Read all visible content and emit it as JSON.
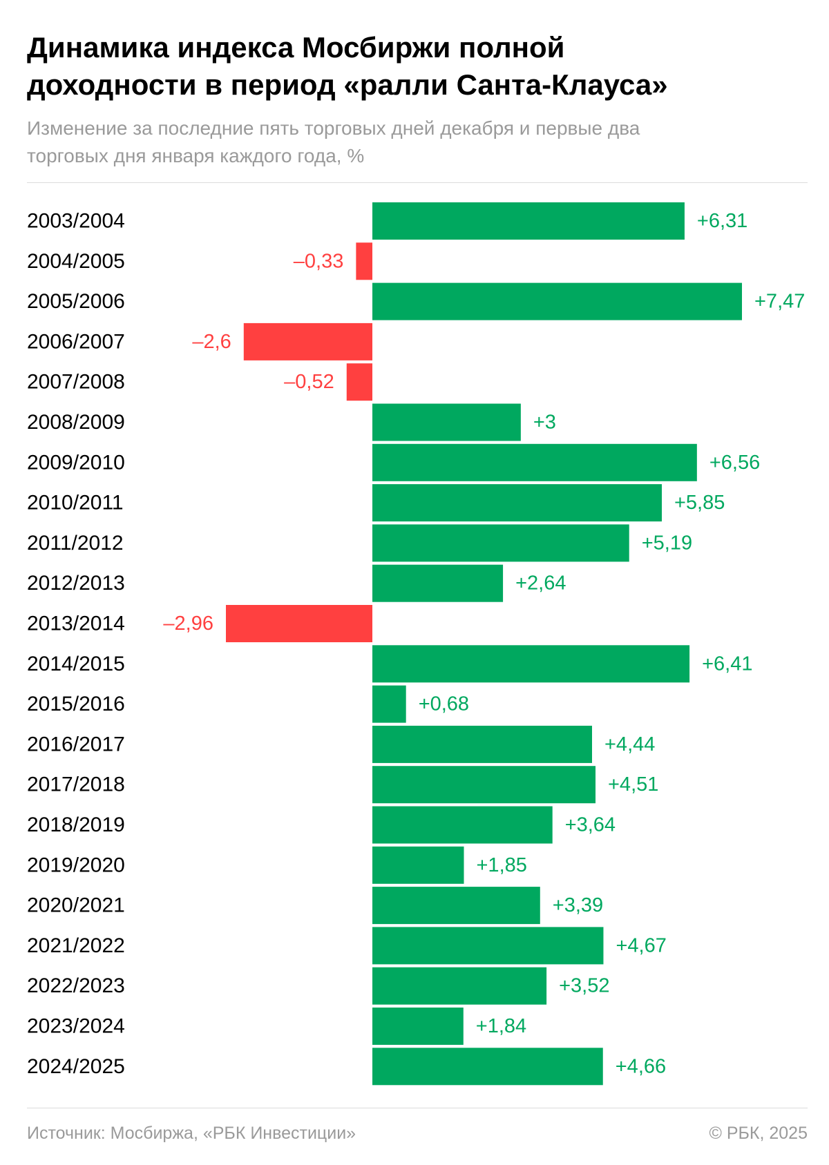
{
  "header": {
    "title_line1": "Динамика индекса Мосбиржи полной",
    "title_line2": "доходности в период «ралли Санта-Клауса»",
    "subtitle_line1": "Изменение за последние пять торговых дней декабря и первые два",
    "subtitle_line2": "торговых дня января каждого года, %"
  },
  "footer": {
    "source": "Источник: Мосбиржа, «РБК Инвестиции»",
    "copyright": "© РБК, 2025"
  },
  "colors": {
    "positive": "#00a85f",
    "negative": "#ff4040",
    "text": "#000000",
    "muted": "#9a9a9a"
  },
  "chart_data": {
    "type": "bar",
    "orientation": "horizontal",
    "title": "Динамика индекса Мосбиржи полной доходности в период «ралли Санта-Клауса»",
    "subtitle": "Изменение за последние пять торговых дней декабря и первые два торговых дня января каждого года, %",
    "categories": [
      "2003/2004",
      "2004/2005",
      "2005/2006",
      "2006/2007",
      "2007/2008",
      "2008/2009",
      "2009/2010",
      "2010/2011",
      "2011/2012",
      "2012/2013",
      "2013/2014",
      "2014/2015",
      "2015/2016",
      "2016/2017",
      "2017/2018",
      "2018/2019",
      "2019/2020",
      "2020/2021",
      "2021/2022",
      "2022/2023",
      "2023/2024",
      "2024/2025"
    ],
    "values": [
      6.31,
      -0.33,
      7.47,
      -2.6,
      -0.52,
      3,
      6.56,
      5.85,
      5.19,
      2.64,
      -2.96,
      6.41,
      0.68,
      4.44,
      4.51,
      3.64,
      1.85,
      3.39,
      4.67,
      3.52,
      1.84,
      4.66
    ],
    "labels": [
      "+6,31",
      "–0,33",
      "+7,47",
      "–2,6",
      "–0,52",
      "+3",
      "+6,56",
      "+5,85",
      "+5,19",
      "+2,64",
      "–2,96",
      "+6,41",
      "+0,68",
      "+4,44",
      "+4,51",
      "+3,64",
      "+1,85",
      "+3,39",
      "+4,67",
      "+3,52",
      "+1,84",
      "+4,66"
    ],
    "xlim": [
      -2.96,
      7.47
    ],
    "grid": false,
    "legend": false
  }
}
